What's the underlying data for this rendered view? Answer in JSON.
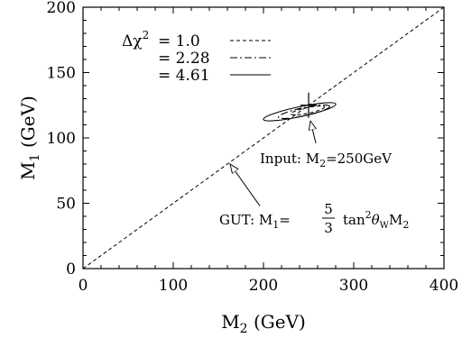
{
  "chart_data": {
    "type": "line",
    "xlabel_main": "M",
    "xlabel_sub": "2",
    "xlabel_unit": " (GeV)",
    "ylabel_main": "M",
    "ylabel_sub": "1",
    "ylabel_unit": " (GeV)",
    "xlim": [
      0,
      400
    ],
    "ylim": [
      0,
      200
    ],
    "x_ticks": [
      0,
      100,
      200,
      300,
      400
    ],
    "y_ticks": [
      0,
      50,
      100,
      150,
      200
    ],
    "grid": false,
    "legend_placement": "top-left",
    "legend": {
      "symbol": "Δχ",
      "power": "2",
      "entries": [
        {
          "prefix": "= ",
          "value": "1.0",
          "style": "dashed"
        },
        {
          "prefix": "= ",
          "value": "2.28",
          "style": "dashdot"
        },
        {
          "prefix": "= ",
          "value": "4.61",
          "style": "solid"
        }
      ]
    },
    "series": [
      {
        "style": "dashed",
        "x": [
          0,
          400
        ],
        "y": [
          0,
          200
        ]
      }
    ],
    "contours": [
      {
        "level": "1.0",
        "style": "dashed",
        "center": [
          249,
          121
        ],
        "semi_major": 19,
        "semi_minor": 2.2,
        "angle_deg": 20
      },
      {
        "level": "2.28",
        "style": "dashdot",
        "center": [
          245,
          120
        ],
        "semi_major": 29,
        "semi_minor": 3.1,
        "angle_deg": 20
      },
      {
        "level": "4.61",
        "style": "solid",
        "center": [
          240,
          120
        ],
        "semi_major": 41,
        "semi_minor": 3.8,
        "angle_deg": 20
      }
    ],
    "input_marker": {
      "x": 250,
      "y": 125
    },
    "annotations": [
      {
        "id": "input",
        "text_prefix": "Input: M",
        "sub": "2",
        "text_suffix": "=250GeV",
        "arrow_from": [
          258,
          96
        ],
        "arrow_to": [
          252,
          113
        ]
      },
      {
        "id": "gut",
        "text_prefix": "GUT: M",
        "sub": "1",
        "frac_num": "5",
        "frac_den": "3",
        "text_suffix_a": "tan",
        "sup": "2",
        "theta": "θ",
        "theta_sub": "W",
        "text_suffix_b": "M",
        "text_suffix_sub": "2",
        "arrow_from": [
          196,
          48
        ],
        "arrow_to": [
          163,
          80
        ]
      }
    ]
  }
}
